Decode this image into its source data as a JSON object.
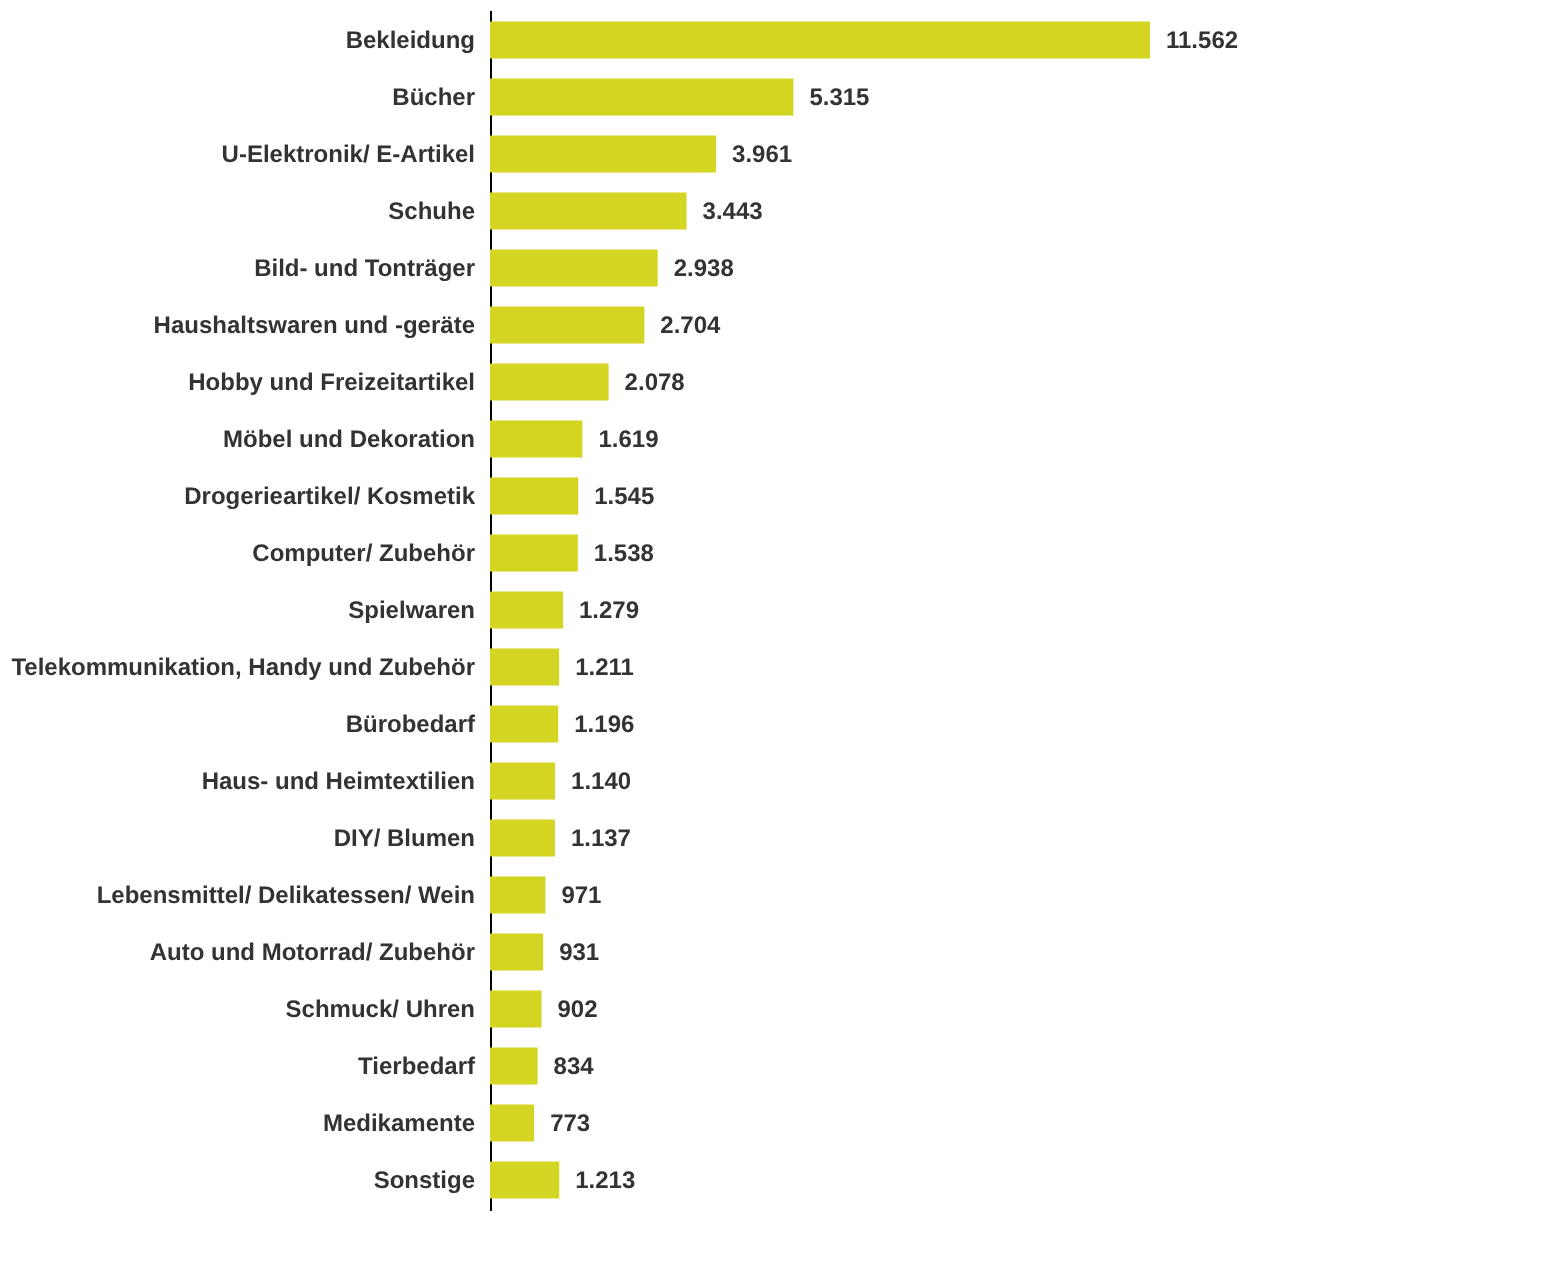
{
  "chart_data": {
    "type": "bar",
    "orientation": "horizontal",
    "categories": [
      "Bekleidung",
      "Bücher",
      "U-Elektronik/ E-Artikel",
      "Schuhe",
      "Bild- und Tonträger",
      "Haushaltswaren und -geräte",
      "Hobby und Freizeitartikel",
      "Möbel und Dekoration",
      "Drogerieartikel/ Kosmetik",
      "Computer/ Zubehör",
      "Spielwaren",
      "Telekommunikation, Handy und Zubehör",
      "Bürobedarf",
      "Haus- und Heimtextilien",
      "DIY/ Blumen",
      "Lebensmittel/ Delikatessen/ Wein",
      "Auto und Motorrad/ Zubehör",
      "Schmuck/ Uhren",
      "Tierbedarf",
      "Medikamente",
      "Sonstige"
    ],
    "values": [
      11562,
      5315,
      3961,
      3443,
      2938,
      2704,
      2078,
      1619,
      1545,
      1538,
      1279,
      1211,
      1196,
      1140,
      1137,
      971,
      931,
      902,
      834,
      773,
      1213
    ],
    "value_labels": [
      "11.562",
      "5.315",
      "3.961",
      "3.443",
      "2.938",
      "2.704",
      "2.078",
      "1.619",
      "1.545",
      "1.538",
      "1.279",
      "1.211",
      "1.196",
      "1.140",
      "1.137",
      "971",
      "931",
      "902",
      "834",
      "773",
      "1.213"
    ],
    "color": "#d4d422",
    "grid": false
  }
}
